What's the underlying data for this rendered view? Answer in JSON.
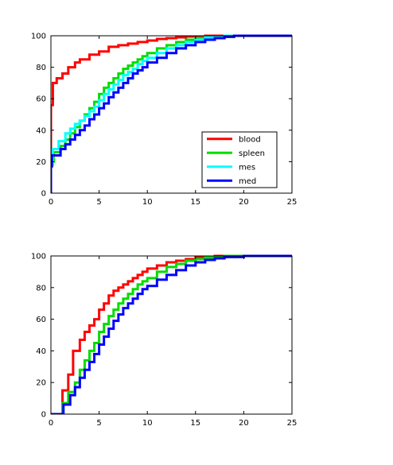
{
  "chart_data": [
    {
      "type": "line",
      "step": true,
      "xlim": [
        0,
        25
      ],
      "ylim": [
        0,
        100
      ],
      "xticks": [
        0,
        5,
        10,
        15,
        20,
        25
      ],
      "yticks": [
        0,
        20,
        40,
        60,
        80,
        100
      ],
      "grid": false,
      "legend_position": "lower-right",
      "series": [
        {
          "name": "blood",
          "color": "#ff0000",
          "x": [
            0,
            0.2,
            0.6,
            1.2,
            1.8,
            2.5,
            3.0,
            4.0,
            5.0,
            6.0,
            7.0,
            8.0,
            9.0,
            10.0,
            11.0,
            12.0,
            13.0,
            14.0,
            16.0,
            20.0
          ],
          "y": [
            56,
            70,
            73,
            76,
            80,
            83,
            85,
            88,
            90,
            93,
            94,
            95,
            96,
            97,
            98,
            98.5,
            99,
            99.5,
            100,
            100
          ]
        },
        {
          "name": "spleen",
          "color": "#00dd00",
          "x": [
            0,
            0.3,
            1.0,
            1.5,
            2.0,
            2.5,
            3.0,
            3.5,
            4.0,
            4.5,
            5.0,
            5.5,
            6.0,
            6.5,
            7.0,
            7.5,
            8.0,
            8.5,
            9.0,
            9.5,
            10.0,
            11.0,
            12.0,
            13.0,
            14.0,
            15.0,
            16.0,
            18.0,
            22.0
          ],
          "y": [
            20,
            26,
            30,
            34,
            38,
            42,
            46,
            50,
            54,
            58,
            63,
            67,
            70,
            73,
            76,
            79,
            81,
            83,
            85,
            87,
            89,
            92,
            94,
            96,
            97.5,
            98.5,
            99.3,
            100,
            100
          ]
        },
        {
          "name": "mes",
          "color": "#00ffff",
          "x": [
            0,
            0.2,
            0.8,
            1.5,
            2.0,
            2.5,
            3.0,
            3.5,
            4.0,
            4.5,
            5.0,
            5.5,
            6.0,
            6.5,
            7.0,
            7.5,
            8.0,
            8.5,
            9.0,
            9.5,
            10.0,
            11.0,
            12.0,
            13.0,
            14.0,
            15.0,
            16.0,
            18.0,
            22.0
          ],
          "y": [
            18,
            28,
            33,
            38,
            41,
            44,
            46,
            49,
            52,
            55,
            59,
            63,
            66,
            69,
            72,
            75,
            77,
            79,
            82,
            84,
            86,
            89,
            92,
            94,
            96,
            97.5,
            99,
            100,
            100
          ]
        },
        {
          "name": "med",
          "color": "#0000ff",
          "x": [
            0,
            0.1,
            1.0,
            1.5,
            2.0,
            2.5,
            3.0,
            3.5,
            4.0,
            4.5,
            5.0,
            5.5,
            6.0,
            6.5,
            7.0,
            7.5,
            8.0,
            8.5,
            9.0,
            9.5,
            10.0,
            11.0,
            12.0,
            13.0,
            14.0,
            15.0,
            16.0,
            17.0,
            18.0,
            19.0,
            21.0
          ],
          "y": [
            17,
            24,
            28,
            31,
            34,
            37,
            40,
            43,
            47,
            50,
            54,
            57,
            61,
            64,
            67,
            70,
            73,
            76,
            78,
            80,
            83,
            86,
            89,
            92,
            94,
            96,
            97.5,
            98.5,
            99.3,
            100,
            100
          ]
        }
      ]
    },
    {
      "type": "line",
      "step": true,
      "xlim": [
        0,
        25
      ],
      "ylim": [
        0,
        100
      ],
      "xticks": [
        0,
        5,
        10,
        15,
        20,
        25
      ],
      "yticks": [
        0,
        20,
        40,
        60,
        80,
        100
      ],
      "grid": false,
      "series": [
        {
          "color": "#ff0000",
          "x": [
            0,
            1.2,
            1.8,
            2.3,
            3.0,
            3.5,
            4.0,
            4.5,
            5.0,
            5.5,
            6.0,
            6.5,
            7.0,
            7.5,
            8.0,
            8.5,
            9.0,
            9.5,
            10.0,
            11.0,
            12.0,
            13.0,
            14.0,
            15.0,
            17.0,
            20.0
          ],
          "y": [
            0,
            15,
            25,
            40,
            47,
            52,
            56,
            60,
            66,
            70,
            75,
            78,
            80,
            82,
            84,
            86,
            88,
            90,
            92,
            94,
            96,
            97,
            98,
            99,
            100,
            100
          ]
        },
        {
          "color": "#00dd00",
          "x": [
            0,
            1.2,
            1.8,
            2.5,
            3.0,
            3.5,
            4.0,
            4.5,
            5.0,
            5.5,
            6.0,
            6.5,
            7.0,
            7.5,
            8.0,
            8.5,
            9.0,
            9.5,
            10.0,
            11.0,
            12.0,
            13.0,
            14.0,
            15.0,
            16.0,
            18.0,
            21.0
          ],
          "y": [
            0,
            7,
            14,
            20,
            28,
            34,
            40,
            45,
            52,
            57,
            62,
            66,
            70,
            73,
            76,
            79,
            82,
            84,
            86,
            90,
            93,
            95,
            97,
            98,
            99,
            100,
            100
          ]
        },
        {
          "color": "#0000ff",
          "x": [
            0,
            1.3,
            2.0,
            2.5,
            3.0,
            3.5,
            4.0,
            4.5,
            5.0,
            5.5,
            6.0,
            6.5,
            7.0,
            7.5,
            8.0,
            8.5,
            9.0,
            9.5,
            10.0,
            11.0,
            12.0,
            13.0,
            14.0,
            15.0,
            16.0,
            17.0,
            18.0,
            20.0,
            22.0
          ],
          "y": [
            0,
            6,
            12,
            17,
            23,
            28,
            33,
            38,
            44,
            49,
            54,
            59,
            63,
            67,
            70,
            73,
            76,
            79,
            81,
            85,
            88,
            91,
            94,
            96,
            97.5,
            98.5,
            99.3,
            100,
            100
          ]
        }
      ]
    }
  ]
}
